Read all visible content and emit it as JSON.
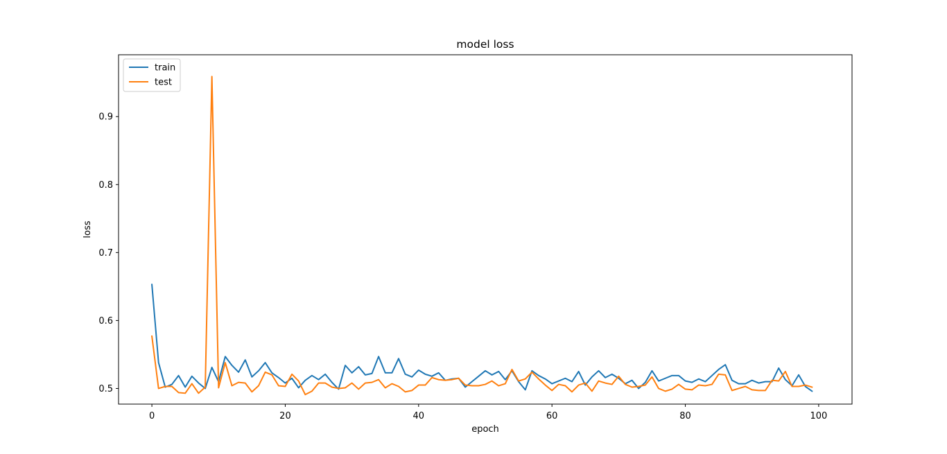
{
  "chart_data": {
    "type": "line",
    "title": "model loss",
    "xlabel": "epoch",
    "ylabel": "loss",
    "xlim": [
      -5,
      105
    ],
    "ylim": [
      0.477,
      0.991
    ],
    "x_ticks": [
      0,
      20,
      40,
      60,
      80,
      100
    ],
    "y_ticks": [
      0.5,
      0.6,
      0.7,
      0.8,
      0.9
    ],
    "y_tick_labels": [
      "0.5",
      "0.6",
      "0.7",
      "0.8",
      "0.9"
    ],
    "grid": false,
    "legend_position": "upper-left",
    "series": [
      {
        "name": "train",
        "color": "#1f77b4",
        "x": [
          0,
          1,
          2,
          3,
          4,
          5,
          6,
          7,
          8,
          9,
          10,
          11,
          12,
          13,
          14,
          15,
          16,
          17,
          18,
          19,
          20,
          21,
          22,
          23,
          24,
          25,
          26,
          27,
          28,
          29,
          30,
          31,
          32,
          33,
          34,
          35,
          36,
          37,
          38,
          39,
          40,
          41,
          42,
          43,
          44,
          45,
          46,
          47,
          48,
          49,
          50,
          51,
          52,
          53,
          54,
          55,
          56,
          57,
          58,
          59,
          60,
          61,
          62,
          63,
          64,
          65,
          66,
          67,
          68,
          69,
          70,
          71,
          72,
          73,
          74,
          75,
          76,
          77,
          78,
          79,
          80,
          81,
          82,
          83,
          84,
          85,
          86,
          87,
          88,
          89,
          90,
          91,
          92,
          93,
          94,
          95,
          96,
          97,
          98,
          99
        ],
        "values": [
          0.653,
          0.538,
          0.502,
          0.506,
          0.519,
          0.502,
          0.518,
          0.508,
          0.5,
          0.531,
          0.51,
          0.547,
          0.534,
          0.524,
          0.542,
          0.517,
          0.526,
          0.538,
          0.523,
          0.516,
          0.508,
          0.515,
          0.501,
          0.512,
          0.519,
          0.513,
          0.521,
          0.509,
          0.499,
          0.534,
          0.523,
          0.532,
          0.52,
          0.522,
          0.547,
          0.523,
          0.523,
          0.544,
          0.521,
          0.517,
          0.527,
          0.521,
          0.518,
          0.523,
          0.512,
          0.514,
          0.515,
          0.502,
          0.51,
          0.518,
          0.526,
          0.52,
          0.525,
          0.513,
          0.526,
          0.51,
          0.498,
          0.526,
          0.519,
          0.514,
          0.507,
          0.511,
          0.515,
          0.51,
          0.525,
          0.505,
          0.517,
          0.526,
          0.516,
          0.521,
          0.515,
          0.507,
          0.512,
          0.5,
          0.509,
          0.526,
          0.511,
          0.515,
          0.519,
          0.519,
          0.511,
          0.509,
          0.514,
          0.51,
          0.519,
          0.528,
          0.535,
          0.512,
          0.507,
          0.507,
          0.512,
          0.508,
          0.51,
          0.51,
          0.53,
          0.513,
          0.504,
          0.52,
          0.503,
          0.496
        ]
      },
      {
        "name": "test",
        "color": "#ff7f0e",
        "x": [
          0,
          1,
          2,
          3,
          4,
          5,
          6,
          7,
          8,
          9,
          10,
          11,
          12,
          13,
          14,
          15,
          16,
          17,
          18,
          19,
          20,
          21,
          22,
          23,
          24,
          25,
          26,
          27,
          28,
          29,
          30,
          31,
          32,
          33,
          34,
          35,
          36,
          37,
          38,
          39,
          40,
          41,
          42,
          43,
          44,
          45,
          46,
          47,
          48,
          49,
          50,
          51,
          52,
          53,
          54,
          55,
          56,
          57,
          58,
          59,
          60,
          61,
          62,
          63,
          64,
          65,
          66,
          67,
          68,
          69,
          70,
          71,
          72,
          73,
          74,
          75,
          76,
          77,
          78,
          79,
          80,
          81,
          82,
          83,
          84,
          85,
          86,
          87,
          88,
          89,
          90,
          91,
          92,
          93,
          94,
          95,
          96,
          97,
          98,
          99
        ],
        "values": [
          0.577,
          0.5,
          0.503,
          0.503,
          0.494,
          0.493,
          0.507,
          0.493,
          0.502,
          0.959,
          0.501,
          0.538,
          0.504,
          0.509,
          0.508,
          0.495,
          0.504,
          0.524,
          0.52,
          0.504,
          0.503,
          0.521,
          0.511,
          0.491,
          0.496,
          0.508,
          0.508,
          0.502,
          0.5,
          0.501,
          0.508,
          0.499,
          0.508,
          0.509,
          0.513,
          0.501,
          0.507,
          0.503,
          0.495,
          0.497,
          0.505,
          0.505,
          0.516,
          0.513,
          0.512,
          0.513,
          0.515,
          0.505,
          0.504,
          0.504,
          0.506,
          0.511,
          0.504,
          0.507,
          0.528,
          0.511,
          0.514,
          0.524,
          0.514,
          0.505,
          0.497,
          0.506,
          0.504,
          0.495,
          0.505,
          0.508,
          0.496,
          0.511,
          0.508,
          0.506,
          0.518,
          0.506,
          0.502,
          0.503,
          0.505,
          0.517,
          0.5,
          0.496,
          0.499,
          0.506,
          0.499,
          0.498,
          0.505,
          0.504,
          0.506,
          0.521,
          0.52,
          0.497,
          0.5,
          0.503,
          0.498,
          0.497,
          0.497,
          0.512,
          0.511,
          0.525,
          0.503,
          0.503,
          0.505,
          0.502
        ]
      }
    ]
  }
}
